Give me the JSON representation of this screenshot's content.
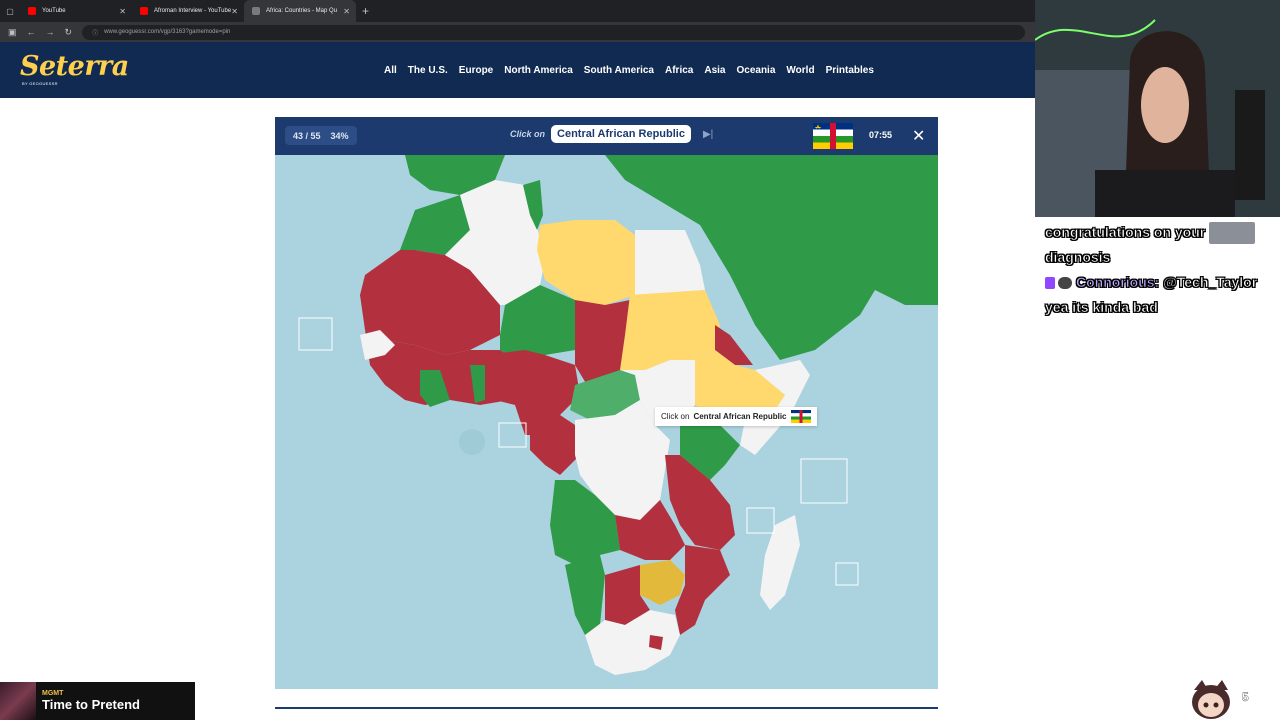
{
  "browser": {
    "tabs": [
      {
        "title": "YouTube",
        "color": "#ff0000"
      },
      {
        "title": "Afroman Interview - YouTube",
        "color": "#ff0000"
      },
      {
        "title": "Africa: Countries - Map Qu",
        "color": "#7a7a7a"
      }
    ],
    "url": "www.geoguessr.com/vgp/3163?gamemode=pin"
  },
  "site": {
    "logo": "Seterra",
    "logo_sub": "BY GEOGUESSR",
    "nav": [
      "All",
      "The U.S.",
      "Europe",
      "North America",
      "South America",
      "Africa",
      "Asia",
      "Oceania",
      "World",
      "Printables"
    ]
  },
  "game": {
    "progress": "43 / 55",
    "percent": "34%",
    "click_on_label": "Click on",
    "target": "Central African Republic",
    "timer": "07:55",
    "hover_prefix": "Click on",
    "hover_target": "Central African Republic"
  },
  "colors": {
    "water": "#aad3df",
    "wrong": "#b3303f",
    "correct_first": "#2f9a48",
    "correct_second": "#ffd96e",
    "correct_third": "#e2b93a",
    "unanswered": "#f3f3f3",
    "header": "#112a52",
    "logo": "#ffd04c"
  },
  "chat": {
    "lines": [
      {
        "user": "",
        "text": "congratulations on your"
      },
      {
        "user": "",
        "text": "diagnosis"
      },
      {
        "user": "Connorious:",
        "text": "@Tech_Taylor"
      },
      {
        "user": "",
        "text": "yea its kinda bad"
      }
    ]
  },
  "music": {
    "artist": "MGMT",
    "song": "Time to Pretend"
  },
  "overlay": {
    "corner_number": "5"
  }
}
